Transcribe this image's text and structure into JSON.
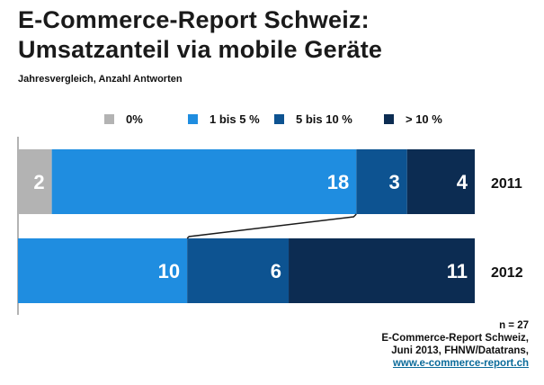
{
  "title_line1": "E-Commerce-Report Schweiz:",
  "title_line2": "Umsatzanteil via mobile Geräte",
  "subtitle": "Jahresvergleich, Anzahl Antworten",
  "source": {
    "n": "n = 27",
    "line1": "E-Commerce-Report Schweiz,",
    "line2": "Juni 2013, FHNW/Datatrans,",
    "link": "www.e-commerce-report.ch"
  },
  "colors": {
    "0%": "#b3b3b3",
    "1 bis 5 %": "#1f8de0",
    "5 bis 10 %": "#0d5391",
    ">10 %": "#0c2c52"
  },
  "chart_data": {
    "type": "bar",
    "orientation": "horizontal",
    "stacked": true,
    "categories": [
      "2011",
      "2012"
    ],
    "series": [
      {
        "name": "0%",
        "values": [
          2,
          0
        ]
      },
      {
        "name": "1 bis 5 %",
        "values": [
          18,
          10
        ]
      },
      {
        "name": "5 bis 10 %",
        "values": [
          3,
          6
        ]
      },
      {
        "name": "> 10 %",
        "values": [
          4,
          11
        ]
      }
    ],
    "legend_position": "top",
    "series_lines": true,
    "xlim": [
      0,
      27
    ]
  }
}
